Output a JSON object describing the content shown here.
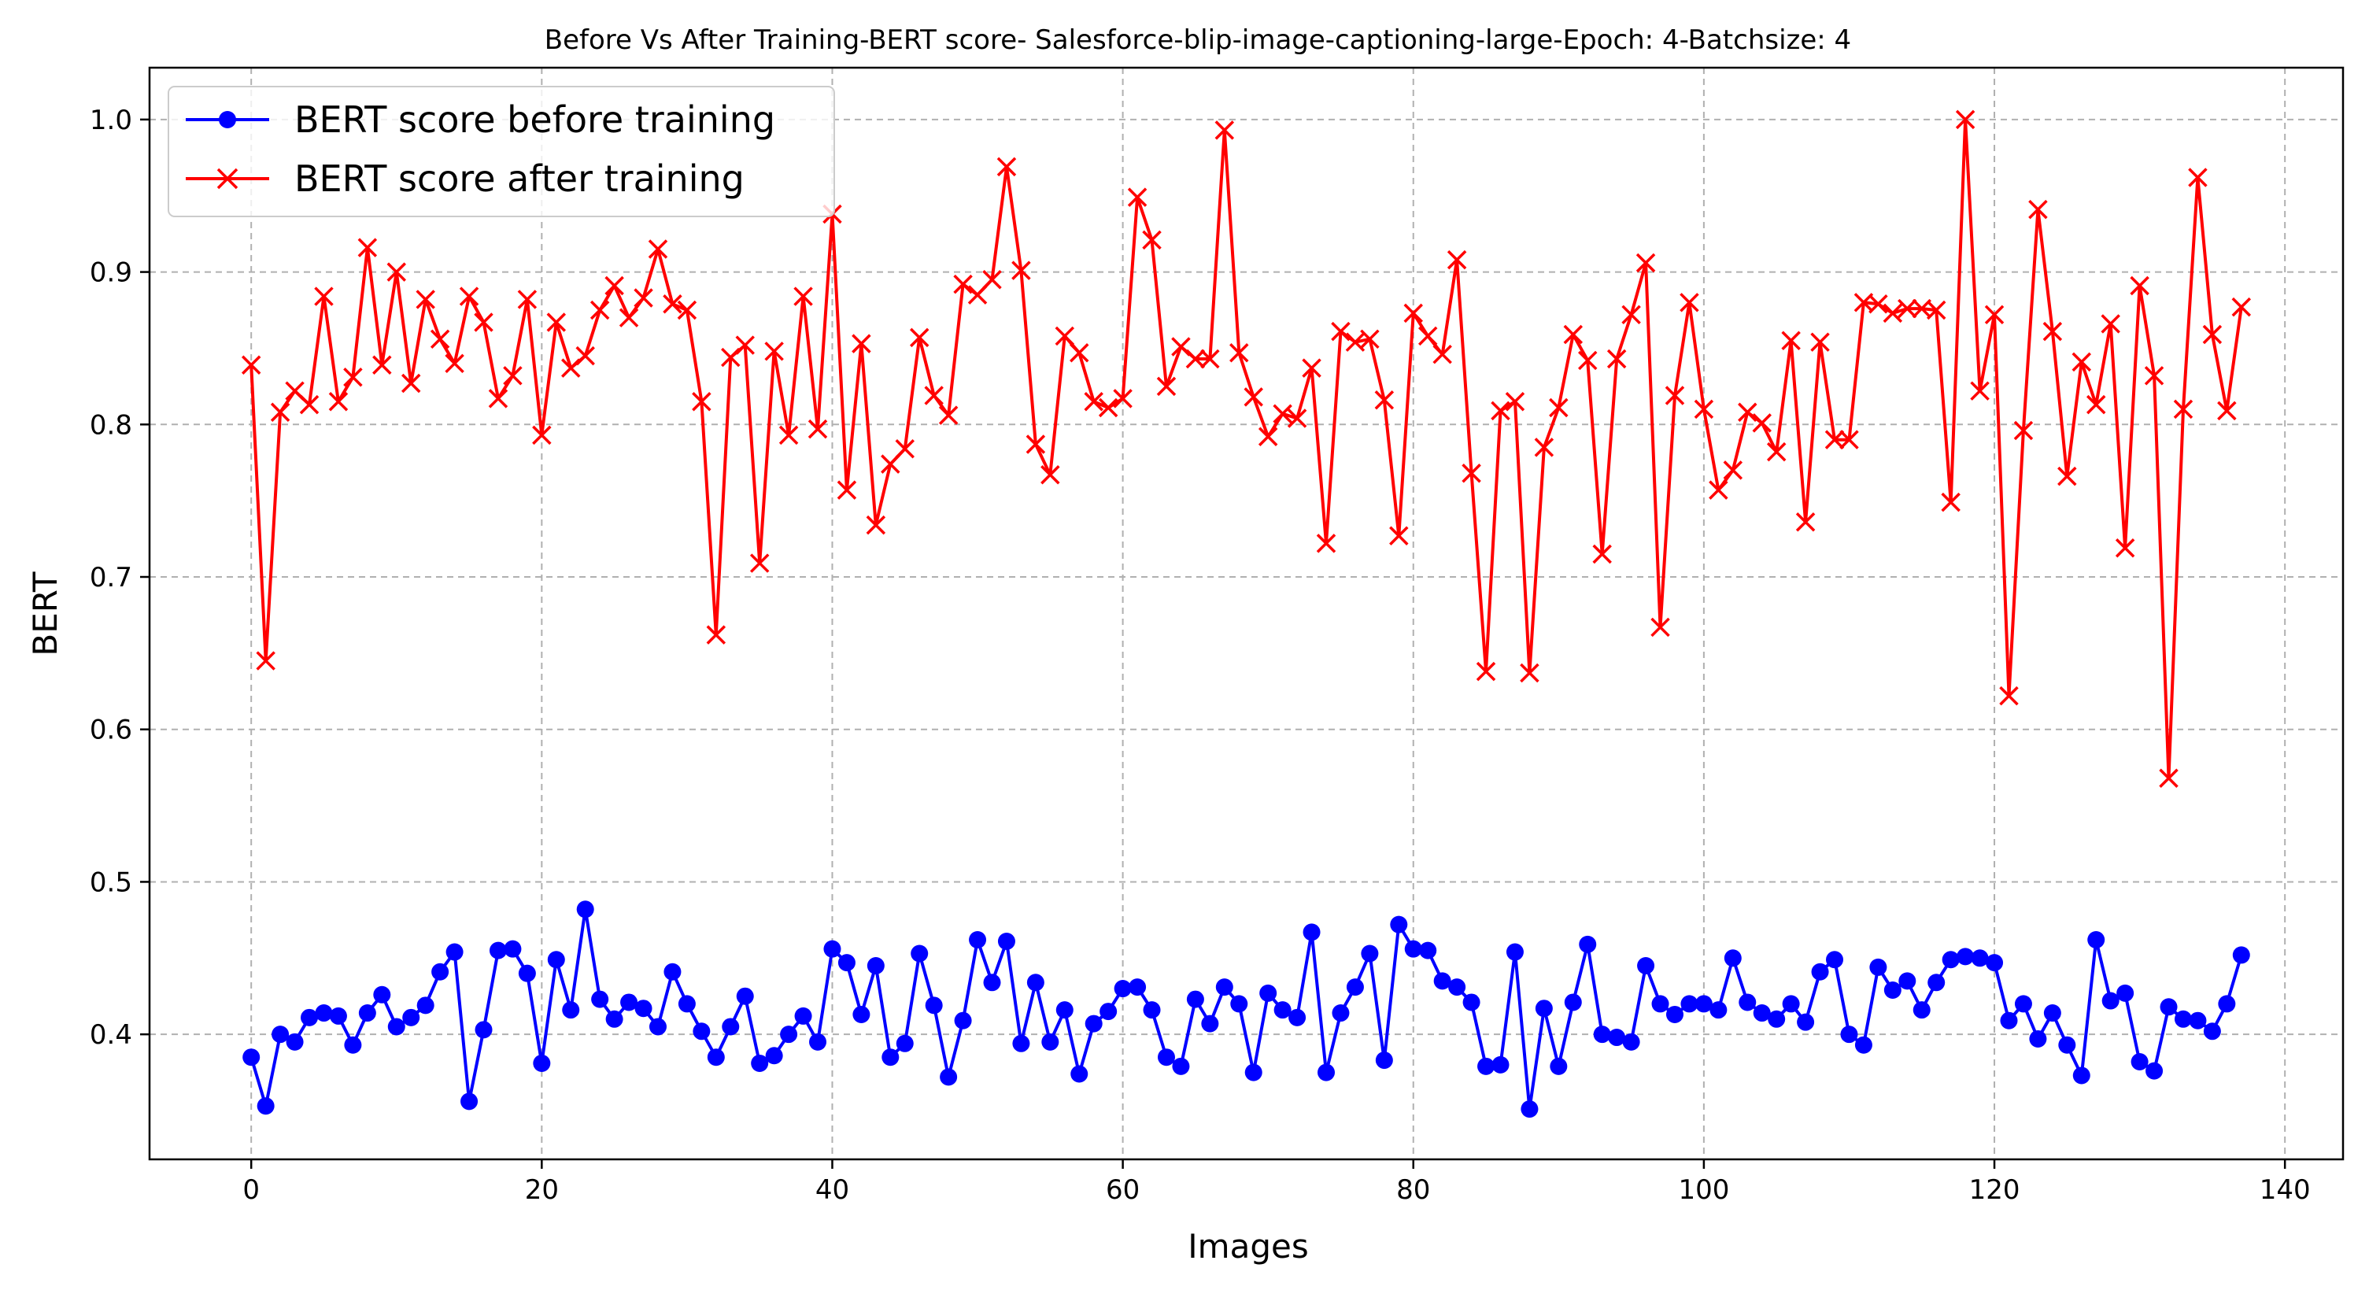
{
  "chart_data": {
    "type": "line",
    "title": "Before Vs After Training-BERT score- Salesforce-blip-image-captioning-large-Epoch: 4-Batchsize: 4",
    "xlabel": "Images",
    "ylabel": "BERT",
    "xlim": [
      -7,
      144
    ],
    "ylim": [
      0.318,
      1.034
    ],
    "xticks": [
      0,
      20,
      40,
      60,
      80,
      100,
      120,
      140
    ],
    "yticks": [
      0.4,
      0.5,
      0.6,
      0.7,
      0.8,
      0.9,
      1.0
    ],
    "xtick_labels": [
      "0",
      "20",
      "40",
      "60",
      "80",
      "100",
      "120",
      "140"
    ],
    "ytick_labels": [
      "0.4",
      "0.5",
      "0.6",
      "0.7",
      "0.8",
      "0.9",
      "1.0"
    ],
    "grid": true,
    "legend_position": "top-left",
    "series": [
      {
        "name": "BERT score before training",
        "color": "#0000ff",
        "marker": "circle",
        "values": [
          0.385,
          0.353,
          0.4,
          0.395,
          0.411,
          0.414,
          0.412,
          0.393,
          0.414,
          0.426,
          0.405,
          0.411,
          0.419,
          0.441,
          0.454,
          0.356,
          0.403,
          0.455,
          0.456,
          0.44,
          0.381,
          0.449,
          0.416,
          0.482,
          0.423,
          0.41,
          0.421,
          0.417,
          0.405,
          0.441,
          0.42,
          0.402,
          0.385,
          0.405,
          0.425,
          0.381,
          0.386,
          0.4,
          0.412,
          0.395,
          0.456,
          0.447,
          0.413,
          0.445,
          0.385,
          0.394,
          0.453,
          0.419,
          0.372,
          0.409,
          0.462,
          0.434,
          0.461,
          0.394,
          0.434,
          0.395,
          0.416,
          0.374,
          0.407,
          0.415,
          0.43,
          0.431,
          0.416,
          0.385,
          0.379,
          0.423,
          0.407,
          0.431,
          0.42,
          0.375,
          0.427,
          0.416,
          0.411,
          0.467,
          0.375,
          0.414,
          0.431,
          0.453,
          0.383,
          0.472,
          0.456,
          0.455,
          0.435,
          0.431,
          0.421,
          0.379,
          0.38,
          0.454,
          0.351,
          0.417,
          0.379,
          0.421,
          0.459,
          0.4,
          0.398,
          0.395,
          0.445,
          0.42,
          0.413,
          0.42,
          0.42,
          0.416,
          0.45,
          0.421,
          0.414,
          0.41,
          0.42,
          0.408,
          0.441,
          0.449,
          0.4,
          0.393,
          0.444,
          0.429,
          0.435,
          0.416,
          0.434,
          0.449,
          0.451,
          0.45,
          0.447,
          0.409,
          0.42,
          0.397,
          0.414,
          0.393,
          0.373,
          0.462,
          0.422,
          0.427,
          0.382,
          0.376,
          0.418,
          0.41,
          0.409,
          0.402,
          0.42,
          0.452
        ]
      },
      {
        "name": "BERT score after training",
        "color": "#ff0000",
        "marker": "x",
        "values": [
          0.839,
          0.645,
          0.808,
          0.822,
          0.813,
          0.884,
          0.815,
          0.831,
          0.916,
          0.839,
          0.9,
          0.827,
          0.882,
          0.856,
          0.84,
          0.884,
          0.867,
          0.817,
          0.832,
          0.882,
          0.793,
          0.867,
          0.837,
          0.845,
          0.875,
          0.891,
          0.87,
          0.883,
          0.915,
          0.879,
          0.875,
          0.815,
          0.662,
          0.844,
          0.852,
          0.709,
          0.848,
          0.793,
          0.884,
          0.797,
          0.938,
          0.757,
          0.853,
          0.734,
          0.774,
          0.784,
          0.857,
          0.819,
          0.806,
          0.892,
          0.885,
          0.895,
          0.969,
          0.901,
          0.787,
          0.767,
          0.858,
          0.847,
          0.815,
          0.811,
          0.817,
          0.949,
          0.921,
          0.825,
          0.851,
          0.843,
          0.843,
          0.993,
          0.847,
          0.818,
          0.792,
          0.807,
          0.804,
          0.837,
          0.722,
          0.861,
          0.854,
          0.856,
          0.816,
          0.727,
          0.873,
          0.858,
          0.846,
          0.908,
          0.768,
          0.638,
          0.809,
          0.815,
          0.637,
          0.785,
          0.811,
          0.859,
          0.842,
          0.715,
          0.843,
          0.872,
          0.906,
          0.667,
          0.819,
          0.88,
          0.81,
          0.757,
          0.77,
          0.808,
          0.801,
          0.782,
          0.855,
          0.736,
          0.854,
          0.79,
          0.79,
          0.88,
          0.879,
          0.873,
          0.876,
          0.876,
          0.875,
          0.749,
          1.0,
          0.822,
          0.872,
          0.622,
          0.796,
          0.941,
          0.861,
          0.766,
          0.841,
          0.813,
          0.866,
          0.719,
          0.891,
          0.832,
          0.568,
          0.81,
          0.962,
          0.859,
          0.809,
          0.877
        ]
      }
    ]
  }
}
